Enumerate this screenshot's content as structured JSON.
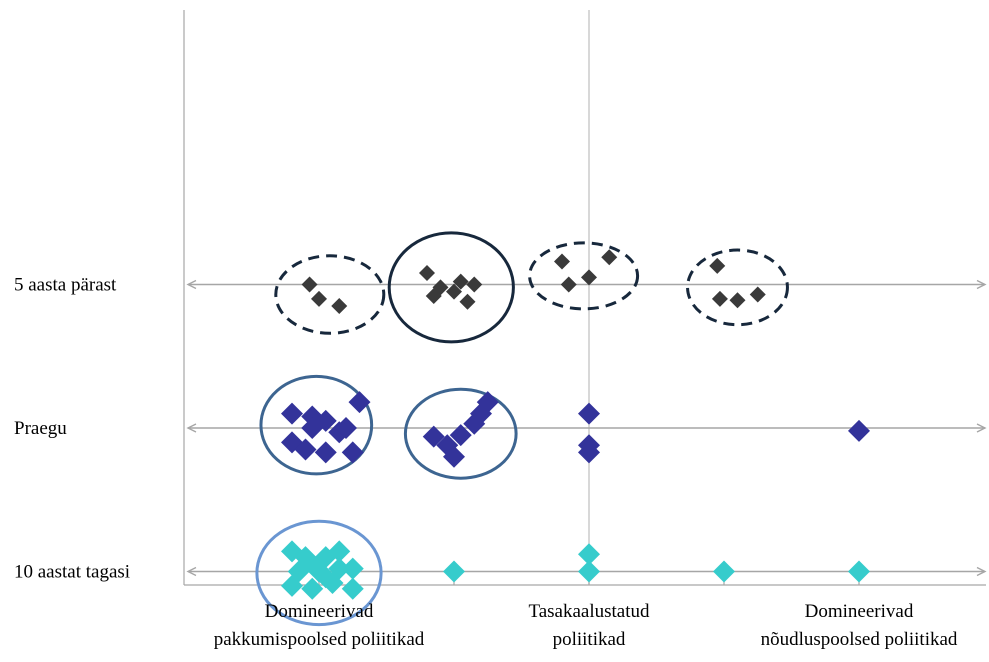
{
  "chart_data": {
    "type": "scatter",
    "title": "",
    "xlabel": "",
    "ylabel": "",
    "xlim": [
      0,
      6
    ],
    "ylim": [
      0,
      4.3
    ],
    "grid": "vertical center line only",
    "legend": "none",
    "x_ticks": [
      {
        "x": 1,
        "lines": [
          "Domineerivad",
          "pakkumispoolsed poliitikad"
        ]
      },
      {
        "x": 3,
        "lines": [
          "Tasakaalustatud",
          "poliitikad"
        ]
      },
      {
        "x": 5,
        "lines": [
          "Domineerivad",
          "nõudluspoolsed poliitikad"
        ]
      }
    ],
    "y_ticks": [
      {
        "y": 3,
        "label": "5 aasta pärast"
      },
      {
        "y": 2,
        "label": "Praegu"
      },
      {
        "y": 1,
        "label": "10 aastat tagasi"
      }
    ],
    "series": [
      {
        "color": "#3a3a3a",
        "marker_size": "small",
        "points": [
          [
            0.93,
            3.0
          ],
          [
            1.0,
            2.9
          ],
          [
            1.15,
            2.85
          ],
          [
            1.8,
            3.08
          ],
          [
            1.85,
            2.92
          ],
          [
            1.9,
            2.98
          ],
          [
            2.0,
            2.95
          ],
          [
            2.05,
            3.02
          ],
          [
            2.1,
            2.88
          ],
          [
            2.15,
            3.0
          ],
          [
            2.8,
            3.16
          ],
          [
            2.85,
            3.0
          ],
          [
            3.0,
            3.05
          ],
          [
            3.15,
            3.19
          ],
          [
            3.95,
            3.13
          ],
          [
            3.97,
            2.9
          ],
          [
            4.1,
            2.89
          ],
          [
            4.25,
            2.93
          ]
        ]
      },
      {
        "color": "#33339a",
        "marker_size": "medium",
        "points": [
          [
            0.8,
            2.1
          ],
          [
            0.95,
            2.08
          ],
          [
            1.05,
            2.05
          ],
          [
            1.15,
            1.97
          ],
          [
            1.3,
            2.18
          ],
          [
            0.8,
            1.9
          ],
          [
            0.9,
            1.85
          ],
          [
            0.95,
            2.0
          ],
          [
            1.05,
            1.83
          ],
          [
            1.25,
            1.83
          ],
          [
            1.2,
            2.0
          ],
          [
            1.85,
            1.94
          ],
          [
            1.95,
            1.88
          ],
          [
            2.0,
            1.8
          ],
          [
            2.05,
            1.95
          ],
          [
            2.15,
            2.03
          ],
          [
            2.2,
            2.1
          ],
          [
            2.25,
            2.18
          ],
          [
            3.0,
            2.1
          ],
          [
            3.0,
            1.88
          ],
          [
            3.0,
            1.83
          ],
          [
            5.0,
            1.98
          ]
        ]
      },
      {
        "color": "#36cccc",
        "marker_size": "medium",
        "points": [
          [
            0.8,
            1.14
          ],
          [
            0.95,
            1.05
          ],
          [
            1.05,
            1.1
          ],
          [
            1.15,
            1.14
          ],
          [
            1.25,
            1.02
          ],
          [
            0.8,
            0.9
          ],
          [
            0.95,
            0.88
          ],
          [
            1.05,
            0.96
          ],
          [
            1.15,
            1.02
          ],
          [
            1.25,
            0.88
          ],
          [
            0.85,
            1.0
          ],
          [
            1.0,
            1.0
          ],
          [
            1.1,
            0.92
          ],
          [
            0.9,
            1.1
          ],
          [
            2.0,
            1.0
          ],
          [
            3.0,
            1.12
          ],
          [
            3.0,
            1.0
          ],
          [
            4.0,
            1.0
          ],
          [
            5.0,
            1.0
          ]
        ]
      }
    ],
    "annotations": [
      {
        "type": "ellipse",
        "style": "dashed",
        "color": "#17283c",
        "cx": 1.08,
        "cy": 2.93,
        "rx": 0.4,
        "ry": 0.27
      },
      {
        "type": "ellipse",
        "style": "solid",
        "color": "#17283c",
        "cx": 1.98,
        "cy": 2.98,
        "rx": 0.46,
        "ry": 0.38
      },
      {
        "type": "ellipse",
        "style": "dashed",
        "color": "#17283c",
        "cx": 2.96,
        "cy": 3.06,
        "rx": 0.4,
        "ry": 0.23
      },
      {
        "type": "ellipse",
        "style": "dashed",
        "color": "#17283c",
        "cx": 4.1,
        "cy": 2.98,
        "rx": 0.37,
        "ry": 0.26
      },
      {
        "type": "ellipse",
        "style": "solid",
        "color": "#3d6591",
        "cx": 0.98,
        "cy": 2.02,
        "rx": 0.41,
        "ry": 0.34
      },
      {
        "type": "ellipse",
        "style": "solid",
        "color": "#3d6591",
        "cx": 2.05,
        "cy": 1.96,
        "rx": 0.41,
        "ry": 0.31
      },
      {
        "type": "ellipse",
        "style": "solid",
        "color": "#6a96d2",
        "cx": 1.0,
        "cy": 0.99,
        "rx": 0.46,
        "ry": 0.36
      }
    ]
  }
}
